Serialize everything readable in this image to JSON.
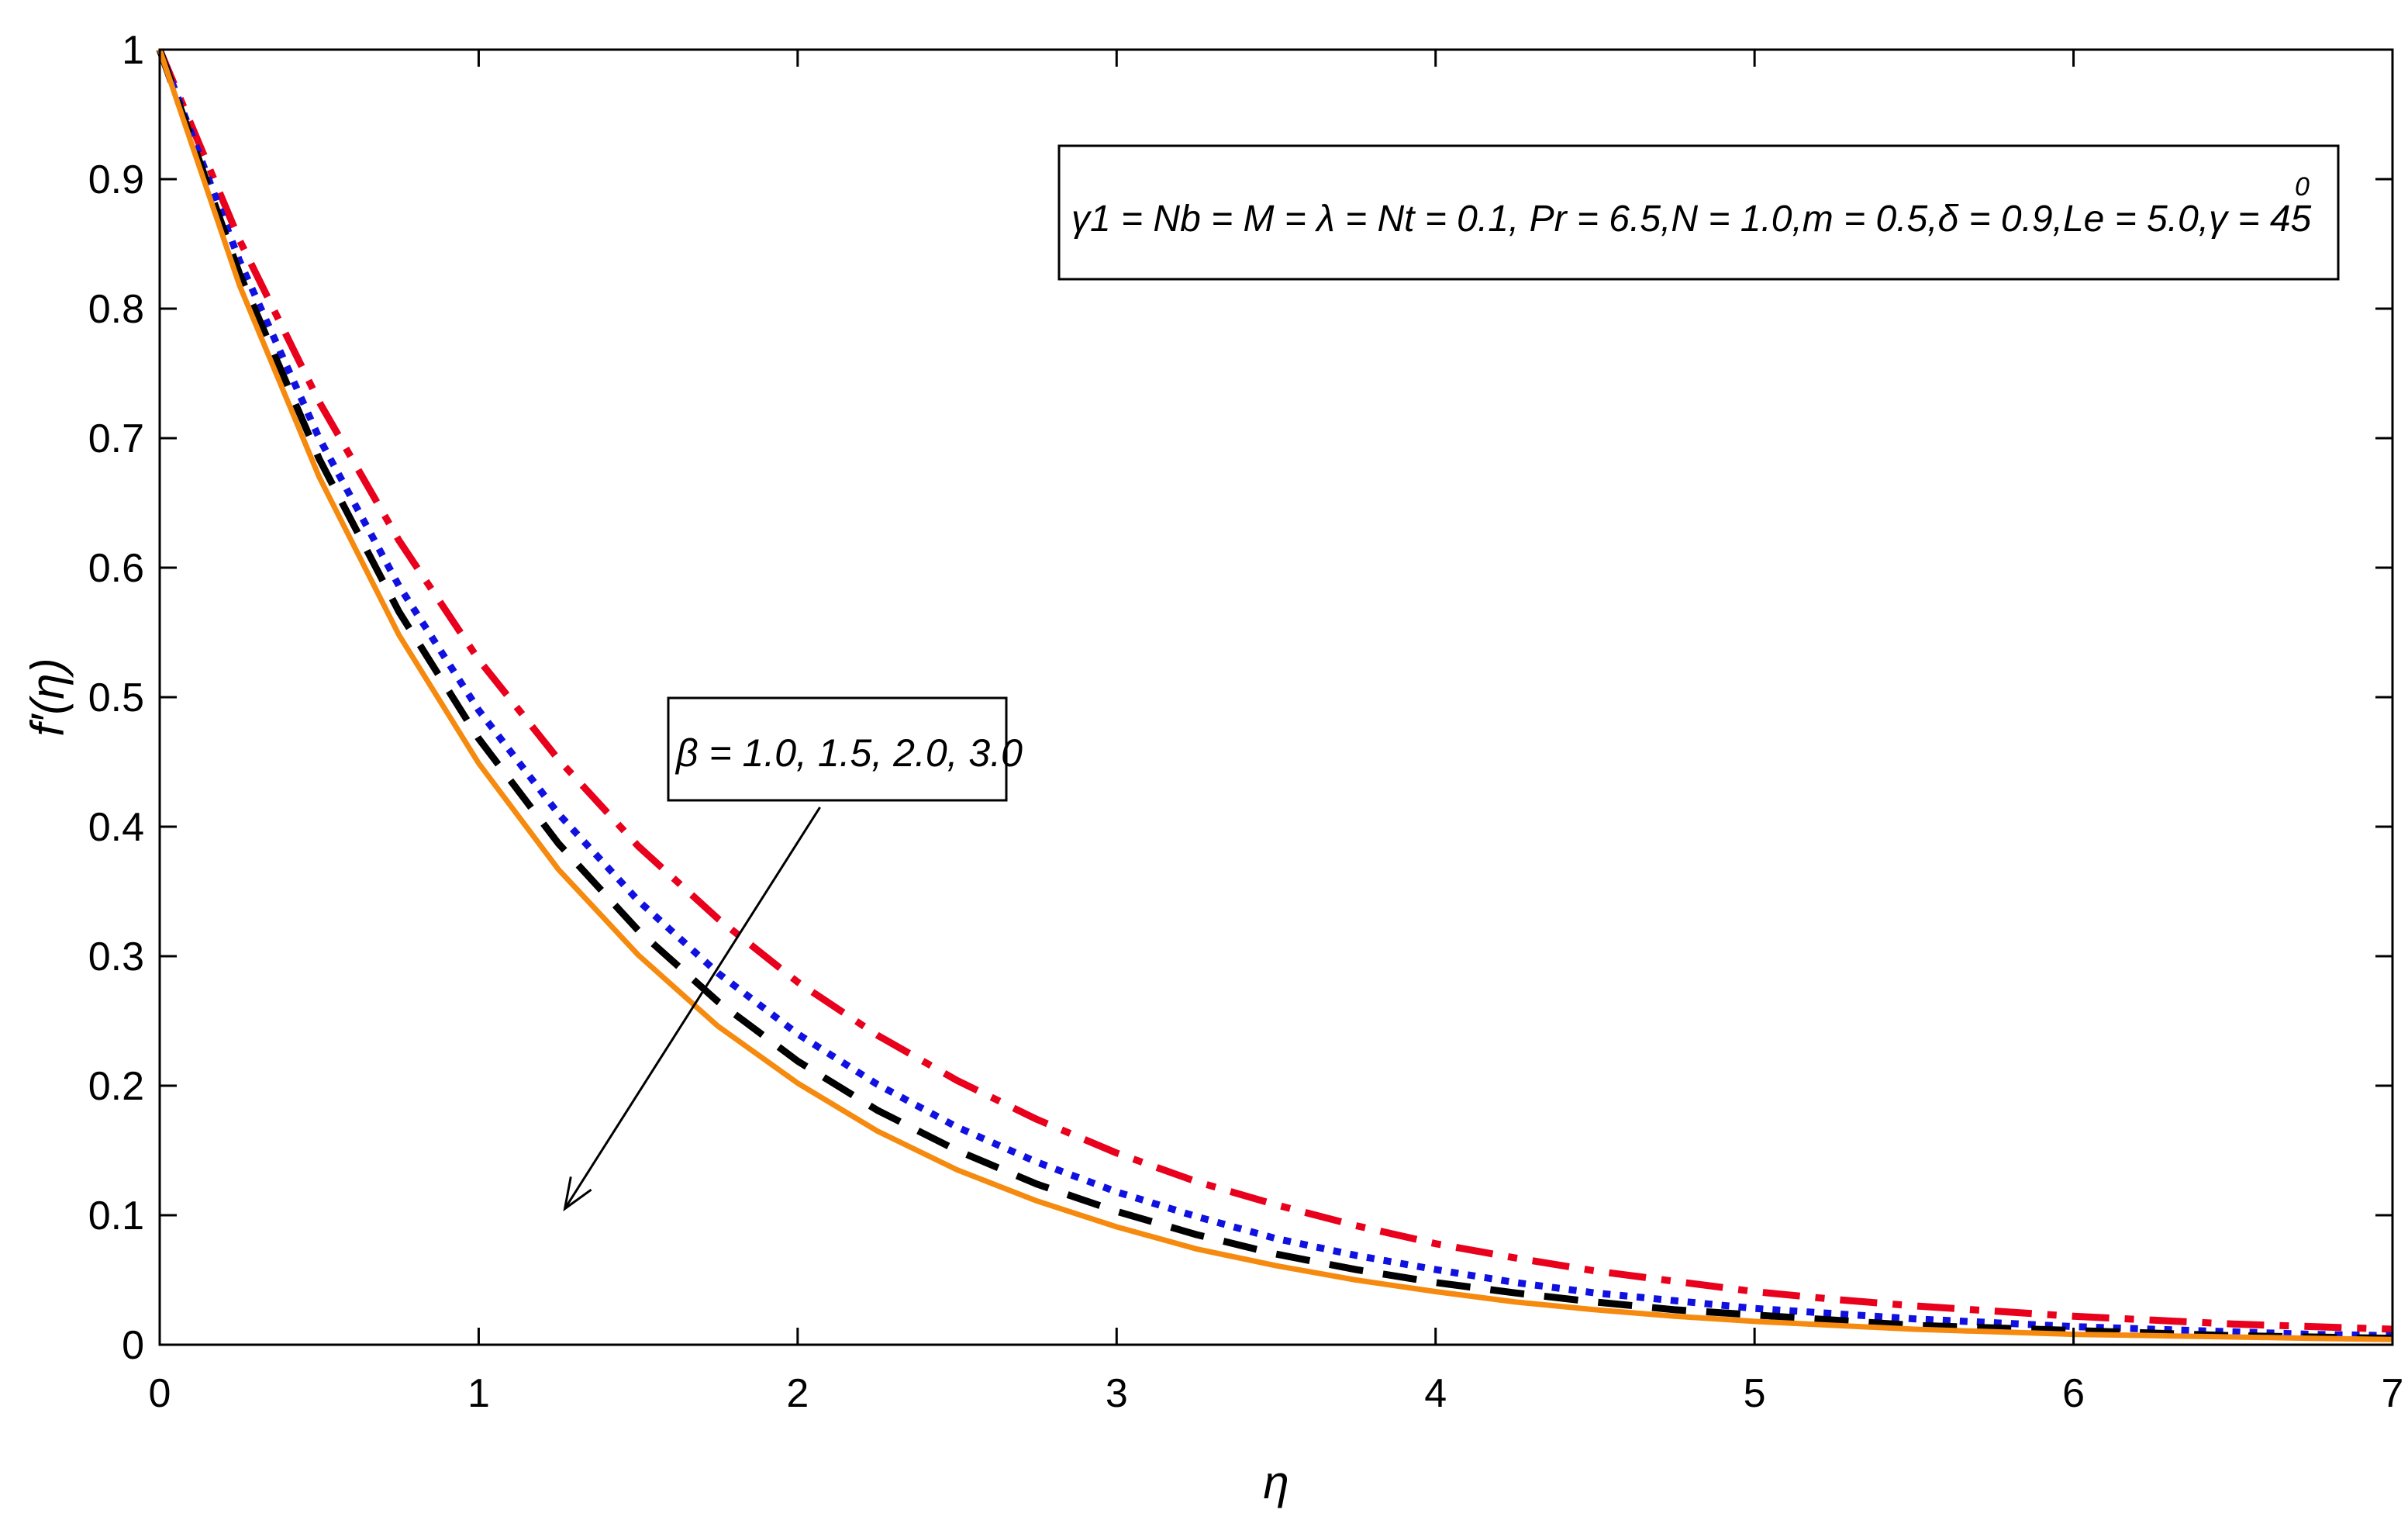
{
  "chart_data": {
    "type": "line",
    "title": "",
    "xlabel": "η",
    "ylabel": "f′(η)",
    "xlim": [
      0,
      7
    ],
    "ylim": [
      0,
      1
    ],
    "x_ticks": [
      "0",
      "1",
      "2",
      "3",
      "4",
      "5",
      "6",
      "7"
    ],
    "y_ticks": [
      "0",
      "0.1",
      "0.2",
      "0.3",
      "0.4",
      "0.5",
      "0.6",
      "0.7",
      "0.8",
      "0.9",
      "1"
    ],
    "grid": false,
    "x": [
      0,
      0.25,
      0.5,
      0.75,
      1,
      1.25,
      1.5,
      1.75,
      2,
      2.25,
      2.5,
      2.75,
      3,
      3.25,
      3.5,
      3.75,
      4,
      4.25,
      4.5,
      4.75,
      5,
      5.25,
      5.5,
      5.75,
      6,
      6.25,
      6.5,
      6.75,
      7
    ],
    "series": [
      {
        "color": "#e8001c",
        "dash": "dashdot",
        "values": [
          1.0,
          0.853,
          0.728,
          0.621,
          0.529,
          0.452,
          0.385,
          0.329,
          0.28,
          0.239,
          0.204,
          0.174,
          0.148,
          0.126,
          0.108,
          0.092,
          0.078,
          0.067,
          0.057,
          0.049,
          0.041,
          0.035,
          0.03,
          0.026,
          0.022,
          0.019,
          0.016,
          0.014,
          0.012
        ]
      },
      {
        "color": "#1010e0",
        "dash": "dotted",
        "values": [
          1.0,
          0.837,
          0.7,
          0.586,
          0.49,
          0.41,
          0.343,
          0.287,
          0.24,
          0.201,
          0.168,
          0.141,
          0.118,
          0.099,
          0.082,
          0.069,
          0.058,
          0.048,
          0.04,
          0.034,
          0.028,
          0.024,
          0.02,
          0.017,
          0.014,
          0.012,
          0.01,
          0.008,
          0.007
        ]
      },
      {
        "color": "#000000",
        "dash": "dashed",
        "values": [
          1.0,
          0.827,
          0.684,
          0.566,
          0.468,
          0.387,
          0.32,
          0.265,
          0.219,
          0.181,
          0.15,
          0.124,
          0.103,
          0.085,
          0.07,
          0.058,
          0.048,
          0.04,
          0.033,
          0.027,
          0.023,
          0.019,
          0.015,
          0.013,
          0.011,
          0.009,
          0.007,
          0.006,
          0.005
        ]
      },
      {
        "color": "#f58a0f",
        "dash": "solid",
        "values": [
          1.0,
          0.818,
          0.67,
          0.548,
          0.449,
          0.367,
          0.301,
          0.246,
          0.202,
          0.165,
          0.135,
          0.111,
          0.091,
          0.074,
          0.061,
          0.05,
          0.041,
          0.033,
          0.027,
          0.022,
          0.018,
          0.015,
          0.012,
          0.01,
          0.008,
          0.007,
          0.006,
          0.005,
          0.004
        ]
      }
    ],
    "annotations": {
      "parameters": "γ1 = Nb = M = λ = Nt = 0.1, Pr = 6.5,N = 1.0,m = 0.5,δ = 0.9,Le = 5.0,γ = 45",
      "parameters_superscript": "0",
      "beta_label": "β = 1.0, 1.5, 2.0, 3.0"
    },
    "arrow": {
      "from": {
        "x": 2.07,
        "y": 0.415
      },
      "to": {
        "x": 1.27,
        "y": 0.105
      }
    }
  }
}
